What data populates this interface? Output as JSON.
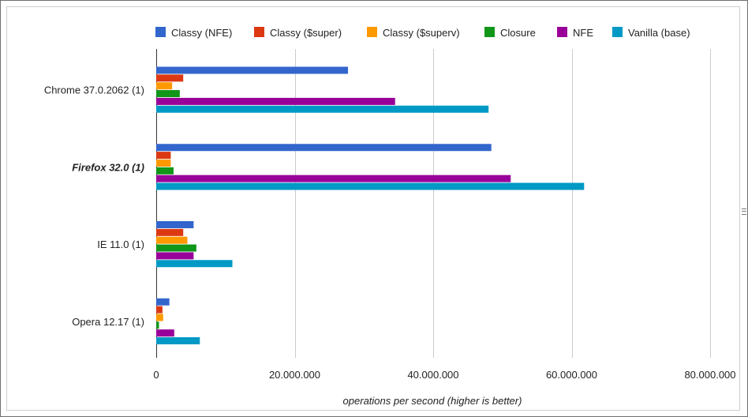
{
  "chart_data": {
    "type": "bar",
    "orientation": "horizontal",
    "title": "",
    "xlabel": "operations per second (higher is better)",
    "ylabel": "",
    "xlim": [
      0,
      80000000
    ],
    "xticks": [
      0,
      20000000,
      40000000,
      60000000,
      80000000
    ],
    "xtick_labels": [
      "0",
      "20.000.000",
      "40.000.000",
      "60.000.000",
      "80.000.000"
    ],
    "grid": "vertical",
    "legend_position": "top",
    "categories": [
      "Chrome 37.0.2062 (1)",
      "Firefox 32.0 (1)",
      "IE 11.0 (1)",
      "Opera 12.17 (1)"
    ],
    "highlighted_category": "Firefox 32.0 (1)",
    "series": [
      {
        "name": "Classy (NFE)",
        "color": "#3366cc",
        "values": [
          27700000,
          48400000,
          5400000,
          1900000
        ]
      },
      {
        "name": "Classy ($super)",
        "color": "#dc3912",
        "values": [
          3900000,
          2100000,
          3900000,
          900000
        ]
      },
      {
        "name": "Classy ($superv)",
        "color": "#ff9900",
        "values": [
          2300000,
          2100000,
          4500000,
          1000000
        ]
      },
      {
        "name": "Closure",
        "color": "#109618",
        "values": [
          3400000,
          2500000,
          5800000,
          400000
        ]
      },
      {
        "name": "NFE",
        "color": "#990099",
        "values": [
          34500000,
          51200000,
          5400000,
          2600000
        ]
      },
      {
        "name": "Vanilla (base)",
        "color": "#0099c6",
        "values": [
          48000000,
          61800000,
          11000000,
          6300000
        ]
      }
    ]
  }
}
